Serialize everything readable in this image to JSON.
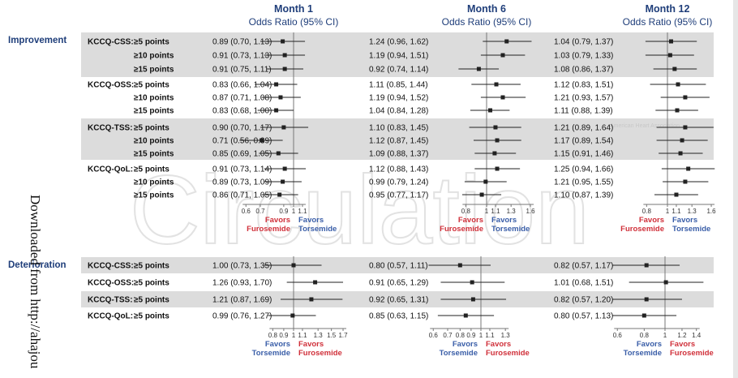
{
  "watermark": {
    "journal": "Circulation",
    "aha": "American Heart Association",
    "download": "Downloaded from http://ahajou"
  },
  "chart_data": {
    "type": "forest",
    "scale": "log",
    "reference_value": 1,
    "panels": [
      {
        "title": "Month 1",
        "subtitle": "Odds Ratio (95% CI)"
      },
      {
        "title": "Month 6",
        "subtitle": "Odds Ratio (95% CI)"
      },
      {
        "title": "Month 12",
        "subtitle": "Odds Ratio (95% CI)"
      }
    ],
    "sections": [
      {
        "name": "Improvement",
        "ticks": [
          [
            0.6,
            0.7,
            0.9,
            1,
            1.1
          ],
          [
            0.8,
            1,
            1.1,
            1.3,
            1.6
          ],
          [
            0.8,
            1,
            1.1,
            1.3,
            1.6
          ]
        ],
        "favors_left": [
          "Favors",
          "Furosemide"
        ],
        "favors_right": [
          "Favors",
          "Torsemide"
        ],
        "groups": [
          {
            "measure": "KCCQ-CSS:",
            "rows": [
              {
                "threshold": "≥5 points",
                "or": [
                  [
                    0.89,
                    0.7,
                    1.13
                  ],
                  [
                    1.24,
                    0.96,
                    1.62
                  ],
                  [
                    1.04,
                    0.79,
                    1.37
                  ]
                ],
                "text": [
                  "0.89 (0.70, 1.13)",
                  "1.24 (0.96, 1.62)",
                  "1.04 (0.79, 1.37)"
                ]
              },
              {
                "threshold": "≥10 points",
                "or": [
                  [
                    0.91,
                    0.73,
                    1.13
                  ],
                  [
                    1.19,
                    0.94,
                    1.51
                  ],
                  [
                    1.03,
                    0.79,
                    1.33
                  ]
                ],
                "text": [
                  "0.91 (0.73, 1.13)",
                  "1.19 (0.94, 1.51)",
                  "1.03 (0.79, 1.33)"
                ]
              },
              {
                "threshold": "≥15 points",
                "or": [
                  [
                    0.91,
                    0.75,
                    1.11
                  ],
                  [
                    0.92,
                    0.74,
                    1.14
                  ],
                  [
                    1.08,
                    0.86,
                    1.37
                  ]
                ],
                "text": [
                  "0.91 (0.75, 1.11)",
                  "0.92 (0.74, 1.14)",
                  "1.08 (0.86, 1.37)"
                ]
              }
            ]
          },
          {
            "measure": "KCCQ-OSS:",
            "rows": [
              {
                "threshold": "≥5 points",
                "or": [
                  [
                    0.83,
                    0.66,
                    1.04
                  ],
                  [
                    1.11,
                    0.85,
                    1.44
                  ],
                  [
                    1.12,
                    0.83,
                    1.51
                  ]
                ],
                "text": [
                  "0.83 (0.66, 1.04)",
                  "1.11 (0.85, 1.44)",
                  "1.12 (0.83, 1.51)"
                ]
              },
              {
                "threshold": "≥10 points",
                "or": [
                  [
                    0.87,
                    0.71,
                    1.08
                  ],
                  [
                    1.19,
                    0.94,
                    1.52
                  ],
                  [
                    1.21,
                    0.93,
                    1.57
                  ]
                ],
                "text": [
                  "0.87 (0.71, 1.08)",
                  "1.19 (0.94, 1.52)",
                  "1.21 (0.93, 1.57)"
                ]
              },
              {
                "threshold": "≥15 points",
                "or": [
                  [
                    0.83,
                    0.68,
                    1.0
                  ],
                  [
                    1.04,
                    0.84,
                    1.28
                  ],
                  [
                    1.11,
                    0.88,
                    1.39
                  ]
                ],
                "text": [
                  "0.83 (0.68, 1.00)",
                  "1.04 (0.84, 1.28)",
                  "1.11 (0.88, 1.39)"
                ]
              }
            ]
          },
          {
            "measure": "KCCQ-TSS:",
            "rows": [
              {
                "threshold": "≥5 points",
                "or": [
                  [
                    0.9,
                    0.7,
                    1.17
                  ],
                  [
                    1.1,
                    0.83,
                    1.45
                  ],
                  [
                    1.21,
                    0.89,
                    1.64
                  ]
                ],
                "text": [
                  "0.90 (0.70, 1.17)",
                  "1.10 (0.83, 1.45)",
                  "1.21 (0.89, 1.64)"
                ]
              },
              {
                "threshold": "≥10 points",
                "or": [
                  [
                    0.71,
                    0.56,
                    0.89
                  ],
                  [
                    1.12,
                    0.87,
                    1.45
                  ],
                  [
                    1.17,
                    0.89,
                    1.54
                  ]
                ],
                "text": [
                  "0.71 (0.56, 0.89)",
                  "1.12 (0.87, 1.45)",
                  "1.17 (0.89, 1.54)"
                ]
              },
              {
                "threshold": "≥15 points",
                "or": [
                  [
                    0.85,
                    0.69,
                    1.05
                  ],
                  [
                    1.09,
                    0.88,
                    1.37
                  ],
                  [
                    1.15,
                    0.91,
                    1.46
                  ]
                ],
                "text": [
                  "0.85 (0.69, 1.05)",
                  "1.09 (0.88, 1.37)",
                  "1.15 (0.91, 1.46)"
                ]
              }
            ]
          },
          {
            "measure": "KCCQ-QoL:",
            "rows": [
              {
                "threshold": "≥5 points",
                "or": [
                  [
                    0.91,
                    0.73,
                    1.14
                  ],
                  [
                    1.12,
                    0.88,
                    1.43
                  ],
                  [
                    1.25,
                    0.94,
                    1.66
                  ]
                ],
                "text": [
                  "0.91 (0.73, 1.14)",
                  "1.12 (0.88, 1.43)",
                  "1.25 (0.94, 1.66)"
                ]
              },
              {
                "threshold": "≥10 points",
                "or": [
                  [
                    0.89,
                    0.73,
                    1.09
                  ],
                  [
                    0.99,
                    0.79,
                    1.24
                  ],
                  [
                    1.21,
                    0.95,
                    1.55
                  ]
                ],
                "text": [
                  "0.89 (0.73, 1.09)",
                  "0.99 (0.79, 1.24)",
                  "1.21 (0.95, 1.55)"
                ]
              },
              {
                "threshold": "≥15 points",
                "or": [
                  [
                    0.86,
                    0.71,
                    1.05
                  ],
                  [
                    0.95,
                    0.77,
                    1.17
                  ],
                  [
                    1.1,
                    0.87,
                    1.39
                  ]
                ],
                "text": [
                  "0.86 (0.71, 1.05)",
                  "0.95 (0.77, 1.17)",
                  "1.10 (0.87, 1.39)"
                ]
              }
            ]
          }
        ]
      },
      {
        "name": "Deterioration",
        "ticks": [
          [
            0.8,
            0.9,
            1,
            1.1,
            1.3,
            1.5,
            1.7
          ],
          [
            0.6,
            0.7,
            0.8,
            0.9,
            1,
            1.1,
            1.3
          ],
          [
            0.6,
            0.8,
            1,
            1.2,
            1.4
          ]
        ],
        "favors_left": [
          "Favors",
          "Torsemide"
        ],
        "favors_right": [
          "Favors",
          "Furosemide"
        ],
        "groups": [
          {
            "measure": "KCCQ-CSS:",
            "rows": [
              {
                "threshold": "≥5 points",
                "or": [
                  [
                    1.0,
                    0.73,
                    1.35
                  ],
                  [
                    0.8,
                    0.57,
                    1.11
                  ],
                  [
                    0.82,
                    0.57,
                    1.17
                  ]
                ],
                "text": [
                  "1.00 (0.73, 1.35)",
                  "0.80 (0.57, 1.11)",
                  "0.82 (0.57, 1.17)"
                ]
              }
            ]
          },
          {
            "measure": "KCCQ-OSS:",
            "rows": [
              {
                "threshold": "≥5 points",
                "or": [
                  [
                    1.26,
                    0.93,
                    1.7
                  ],
                  [
                    0.91,
                    0.65,
                    1.29
                  ],
                  [
                    1.01,
                    0.68,
                    1.51
                  ]
                ],
                "text": [
                  "1.26 (0.93, 1.70)",
                  "0.91 (0.65, 1.29)",
                  "1.01 (0.68, 1.51)"
                ]
              }
            ]
          },
          {
            "measure": "KCCQ-TSS:",
            "rows": [
              {
                "threshold": "≥5 points",
                "or": [
                  [
                    1.21,
                    0.87,
                    1.69
                  ],
                  [
                    0.92,
                    0.65,
                    1.31
                  ],
                  [
                    0.82,
                    0.57,
                    1.2
                  ]
                ],
                "text": [
                  "1.21 (0.87, 1.69)",
                  "0.92 (0.65, 1.31)",
                  "0.82 (0.57, 1.20)"
                ]
              }
            ]
          },
          {
            "measure": "KCCQ-QoL:",
            "rows": [
              {
                "threshold": "≥5 points",
                "or": [
                  [
                    0.99,
                    0.76,
                    1.27
                  ],
                  [
                    0.85,
                    0.63,
                    1.15
                  ],
                  [
                    0.8,
                    0.57,
                    1.13
                  ]
                ],
                "text": [
                  "0.99 (0.76, 1.27)",
                  "0.85 (0.63, 1.15)",
                  "0.80 (0.57, 1.13)"
                ]
              }
            ]
          }
        ]
      }
    ]
  }
}
